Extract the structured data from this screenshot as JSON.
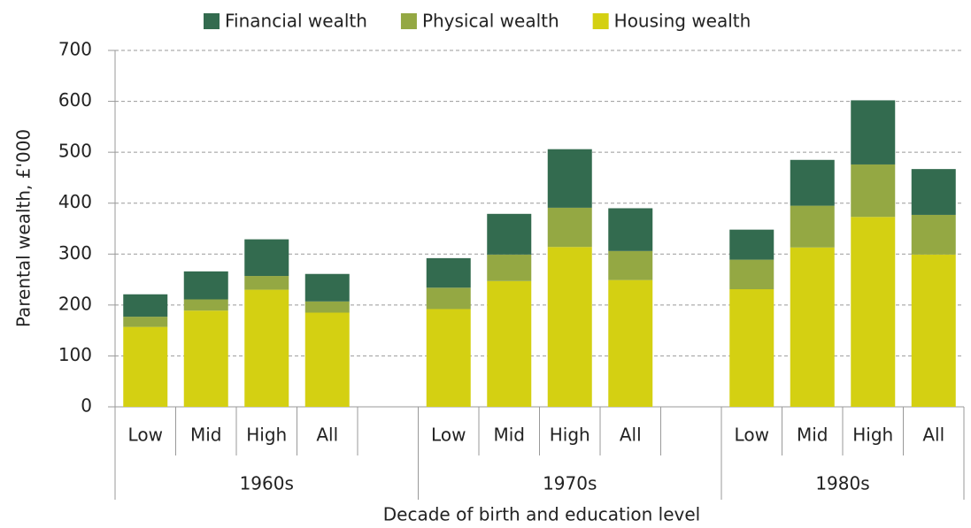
{
  "chart_data": {
    "type": "stacked_bar",
    "x_label": "Decade of birth and education level",
    "y_label": "Parental wealth, £'000",
    "categories": [
      "Low",
      "Mid",
      "High",
      "All",
      null,
      "Low",
      "Mid",
      "High",
      "All",
      null,
      "Low",
      "Mid",
      "High",
      "All"
    ],
    "groups": [
      "1960s",
      "1970s",
      "1980s"
    ],
    "series": [
      {
        "name": "Financial wealth",
        "color": "#336b4f",
        "values": [
          44,
          55,
          72,
          54,
          null,
          58,
          80,
          115,
          84,
          null,
          59,
          90,
          126,
          90
        ]
      },
      {
        "name": "Physical wealth",
        "color": "#94a843",
        "values": [
          20,
          22,
          27,
          22,
          null,
          42,
          52,
          77,
          57,
          null,
          58,
          82,
          103,
          78
        ]
      },
      {
        "name": "Housing wealth",
        "color": "#d4d012",
        "values": [
          157,
          189,
          230,
          185,
          null,
          192,
          247,
          314,
          249,
          null,
          231,
          313,
          373,
          299
        ]
      }
    ],
    "ylim": [
      0,
      700
    ],
    "yticks": [
      0,
      100,
      200,
      300,
      400,
      500,
      600,
      700
    ],
    "grid": true,
    "legend": "top"
  }
}
